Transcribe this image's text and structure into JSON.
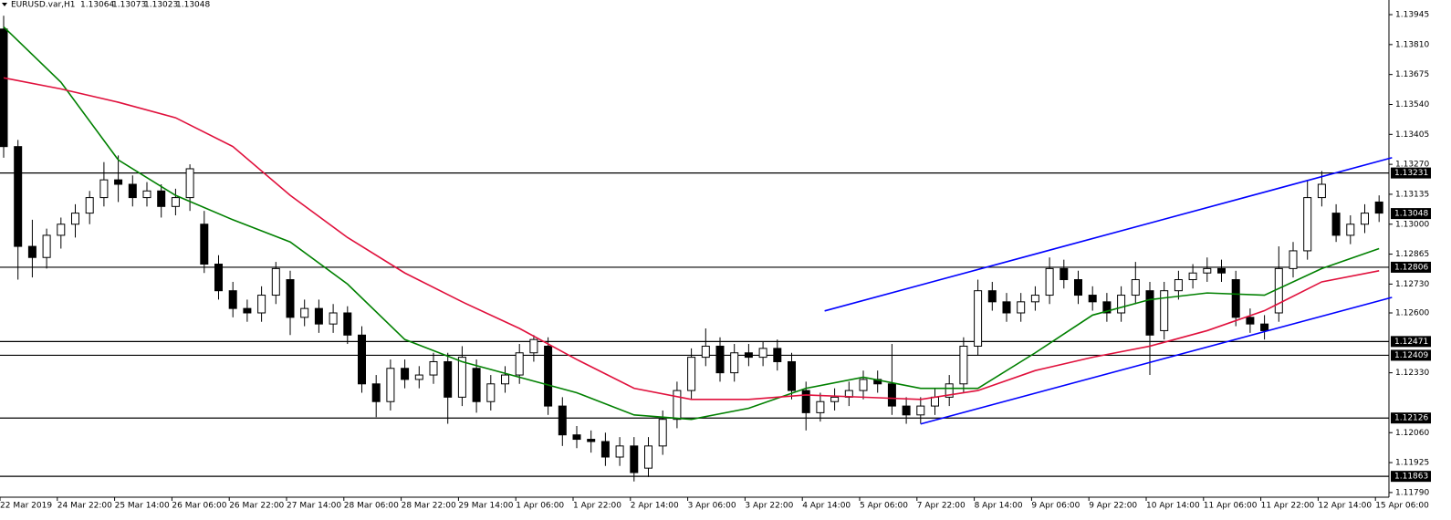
{
  "chart_data": {
    "type": "candlestick",
    "symbol": "EURUSD.var,H1",
    "ohlc": [
      1.13064,
      1.13073,
      1.13023,
      1.13048
    ],
    "last_price": 1.13048,
    "ylim": [
      1.11769,
      1.14011
    ],
    "yticks": [
      1.13945,
      {
        "value": 1.1381,
        "label": "1.13810"
      },
      1.13675,
      {
        "value": 1.1354,
        "label": "1.13540"
      },
      1.13405,
      {
        "value": 1.1327,
        "label": "1.13270"
      },
      1.13135,
      {
        "value": 1.13,
        "label": "1.13000"
      },
      1.12865,
      {
        "value": 1.1273,
        "label": "1.12730"
      },
      {
        "value": 1.126,
        "label": "1.12600"
      },
      {
        "value": 1.1233,
        "label": "1.12330"
      },
      {
        "value": 1.1206,
        "label": "1.12060"
      },
      1.11925,
      {
        "value": 1.1179,
        "label": "1.11790"
      }
    ],
    "levels": [
      1.13231,
      1.12806,
      1.12471,
      1.12409,
      1.12126,
      1.11863
    ],
    "categories": [
      "22 Mar 2019",
      "24 Mar 22:00",
      "25 Mar 14:00",
      "26 Mar 06:00",
      "26 Mar 22:00",
      "27 Mar 14:00",
      "28 Mar 06:00",
      "28 Mar 22:00",
      "29 Mar 14:00",
      "1 Apr 06:00",
      "1 Apr 22:00",
      "2 Apr 14:00",
      "3 Apr 06:00",
      "3 Apr 22:00",
      "4 Apr 14:00",
      "5 Apr 06:00",
      "7 Apr 22:00",
      "8 Apr 14:00",
      "9 Apr 06:00",
      "9 Apr 22:00",
      "10 Apr 14:00",
      "11 Apr 06:00",
      "11 Apr 22:00",
      "12 Apr 14:00",
      "15 Apr 06:00"
    ],
    "candles": [
      [
        1.1388,
        1.1394,
        1.133,
        1.1335
      ],
      [
        1.1335,
        1.1338,
        1.1275,
        1.129
      ],
      [
        1.129,
        1.1302,
        1.1276,
        1.1285
      ],
      [
        1.1285,
        1.1298,
        1.128,
        1.1295
      ],
      [
        1.1295,
        1.1303,
        1.1289,
        1.13
      ],
      [
        1.13,
        1.1309,
        1.1294,
        1.1305
      ],
      [
        1.1305,
        1.1315,
        1.13,
        1.1312
      ],
      [
        1.1312,
        1.1328,
        1.1308,
        1.132
      ],
      [
        1.132,
        1.1331,
        1.131,
        1.1318
      ],
      [
        1.1318,
        1.1322,
        1.1308,
        1.1312
      ],
      [
        1.1312,
        1.1319,
        1.1308,
        1.1315
      ],
      [
        1.1315,
        1.1318,
        1.1303,
        1.1308
      ],
      [
        1.1308,
        1.1316,
        1.1304,
        1.1312
      ],
      [
        1.1312,
        1.1327,
        1.1306,
        1.1325
      ],
      [
        1.13,
        1.1306,
        1.1278,
        1.1282
      ],
      [
        1.1282,
        1.1286,
        1.1266,
        1.127
      ],
      [
        1.127,
        1.1274,
        1.1258,
        1.1262
      ],
      [
        1.1262,
        1.1266,
        1.1256,
        1.126
      ],
      [
        1.126,
        1.1272,
        1.1256,
        1.1268
      ],
      [
        1.1268,
        1.1283,
        1.1264,
        1.128
      ],
      [
        1.1275,
        1.1279,
        1.125,
        1.1258
      ],
      [
        1.1258,
        1.1266,
        1.1254,
        1.1262
      ],
      [
        1.1262,
        1.1266,
        1.1251,
        1.1255
      ],
      [
        1.1255,
        1.1264,
        1.1251,
        1.126
      ],
      [
        1.126,
        1.1263,
        1.1246,
        1.125
      ],
      [
        1.125,
        1.1254,
        1.1224,
        1.1228
      ],
      [
        1.1228,
        1.1232,
        1.1213,
        1.122
      ],
      [
        1.122,
        1.1239,
        1.1216,
        1.1235
      ],
      [
        1.1235,
        1.1239,
        1.1226,
        1.123
      ],
      [
        1.123,
        1.1236,
        1.1226,
        1.1232
      ],
      [
        1.1232,
        1.1242,
        1.1228,
        1.1238
      ],
      [
        1.1238,
        1.1242,
        1.121,
        1.1222
      ],
      [
        1.1222,
        1.1245,
        1.1218,
        1.124
      ],
      [
        1.1235,
        1.1239,
        1.1215,
        1.122
      ],
      [
        1.122,
        1.1232,
        1.1216,
        1.1228
      ],
      [
        1.1228,
        1.1236,
        1.1224,
        1.1232
      ],
      [
        1.1232,
        1.1246,
        1.1228,
        1.1242
      ],
      [
        1.1242,
        1.125,
        1.1238,
        1.1248
      ],
      [
        1.1245,
        1.1249,
        1.1214,
        1.1218
      ],
      [
        1.1218,
        1.1222,
        1.12,
        1.1205
      ],
      [
        1.1205,
        1.1209,
        1.1199,
        1.1203
      ],
      [
        1.1203,
        1.1207,
        1.1197,
        1.1202
      ],
      [
        1.1202,
        1.1206,
        1.1191,
        1.1195
      ],
      [
        1.1195,
        1.1204,
        1.1191,
        1.12
      ],
      [
        1.12,
        1.1204,
        1.1184,
        1.1188
      ],
      [
        1.119,
        1.1204,
        1.1186,
        1.12
      ],
      [
        1.12,
        1.1216,
        1.1196,
        1.1212
      ],
      [
        1.1212,
        1.1229,
        1.1208,
        1.1225
      ],
      [
        1.1225,
        1.1244,
        1.1221,
        1.124
      ],
      [
        1.124,
        1.1253,
        1.1236,
        1.1245
      ],
      [
        1.1245,
        1.1249,
        1.1229,
        1.1233
      ],
      [
        1.1233,
        1.1246,
        1.1229,
        1.1242
      ],
      [
        1.1242,
        1.1246,
        1.1236,
        1.124
      ],
      [
        1.124,
        1.1247,
        1.1236,
        1.1244
      ],
      [
        1.1244,
        1.1248,
        1.1234,
        1.1238
      ],
      [
        1.1238,
        1.1242,
        1.1221,
        1.1225
      ],
      [
        1.1225,
        1.1229,
        1.1207,
        1.1215
      ],
      [
        1.1215,
        1.1224,
        1.1211,
        1.122
      ],
      [
        1.122,
        1.1226,
        1.1216,
        1.1222
      ],
      [
        1.1222,
        1.1229,
        1.1218,
        1.1225
      ],
      [
        1.1225,
        1.1234,
        1.1221,
        1.123
      ],
      [
        1.123,
        1.1234,
        1.1224,
        1.1228
      ],
      [
        1.1228,
        1.1246,
        1.1214,
        1.1218
      ],
      [
        1.1218,
        1.1222,
        1.121,
        1.1214
      ],
      [
        1.1214,
        1.1222,
        1.121,
        1.1218
      ],
      [
        1.1218,
        1.1226,
        1.1214,
        1.1222
      ],
      [
        1.1222,
        1.1232,
        1.1218,
        1.1228
      ],
      [
        1.1228,
        1.1249,
        1.1224,
        1.1245
      ],
      [
        1.1245,
        1.1275,
        1.1241,
        1.127
      ],
      [
        1.127,
        1.1274,
        1.1261,
        1.1265
      ],
      [
        1.1265,
        1.1269,
        1.1256,
        1.126
      ],
      [
        1.126,
        1.1269,
        1.1256,
        1.1265
      ],
      [
        1.1265,
        1.1272,
        1.1261,
        1.1268
      ],
      [
        1.1268,
        1.1285,
        1.1264,
        1.128
      ],
      [
        1.128,
        1.1284,
        1.1271,
        1.1275
      ],
      [
        1.1275,
        1.1279,
        1.1264,
        1.1268
      ],
      [
        1.1268,
        1.1272,
        1.1261,
        1.1265
      ],
      [
        1.1265,
        1.1269,
        1.1256,
        1.126
      ],
      [
        1.126,
        1.1272,
        1.1256,
        1.1268
      ],
      [
        1.1268,
        1.1283,
        1.1264,
        1.1275
      ],
      [
        1.127,
        1.1274,
        1.1232,
        1.125
      ],
      [
        1.1252,
        1.1274,
        1.1248,
        1.127
      ],
      [
        1.127,
        1.1279,
        1.1266,
        1.1275
      ],
      [
        1.1275,
        1.1282,
        1.1271,
        1.1278
      ],
      [
        1.1278,
        1.1285,
        1.1274,
        1.128
      ],
      [
        1.128,
        1.1284,
        1.1274,
        1.1278
      ],
      [
        1.1275,
        1.1279,
        1.1254,
        1.1258
      ],
      [
        1.1258,
        1.1262,
        1.1251,
        1.1255
      ],
      [
        1.1255,
        1.1259,
        1.1248,
        1.1252
      ],
      [
        1.126,
        1.129,
        1.1256,
        1.128
      ],
      [
        1.128,
        1.1292,
        1.1276,
        1.1288
      ],
      [
        1.1288,
        1.132,
        1.1284,
        1.1312
      ],
      [
        1.1312,
        1.1324,
        1.1308,
        1.1318
      ],
      [
        1.1305,
        1.1309,
        1.1292,
        1.1295
      ],
      [
        1.1295,
        1.1304,
        1.1291,
        1.13
      ],
      [
        1.13,
        1.1309,
        1.1296,
        1.1305
      ],
      [
        1.131,
        1.1313,
        1.1301,
        1.1305
      ]
    ],
    "ma_x": [
      0,
      4,
      8,
      12,
      16,
      20,
      24,
      28,
      32,
      36,
      40,
      44,
      48,
      52,
      56,
      60,
      64,
      68,
      72,
      76,
      80,
      84,
      88,
      92,
      96
    ],
    "series": [
      {
        "color": "#008000",
        "values": [
          1.1389,
          1.1364,
          1.1329,
          1.1313,
          1.1302,
          1.1292,
          1.1273,
          1.1248,
          1.1238,
          1.1231,
          1.1224,
          1.1214,
          1.1212,
          1.1217,
          1.1226,
          1.1231,
          1.1226,
          1.1226,
          1.1242,
          1.1259,
          1.1266,
          1.1269,
          1.1268,
          1.128,
          1.1289
        ]
      },
      {
        "color": "#e0103c",
        "values": [
          1.1366,
          1.1361,
          1.1355,
          1.1348,
          1.1335,
          1.1313,
          1.1294,
          1.1278,
          1.1265,
          1.1253,
          1.1239,
          1.1226,
          1.1221,
          1.1221,
          1.1223,
          1.1222,
          1.1221,
          1.1225,
          1.1234,
          1.124,
          1.1245,
          1.1252,
          1.1261,
          1.1274,
          1.1279
        ]
      }
    ],
    "trendlines": [
      {
        "color": "#0000ff",
        "x": [
          57.3,
          96.9
        ],
        "values": [
          1.12609,
          1.133
        ]
      },
      {
        "color": "#0000ff",
        "x": [
          64,
          96.9
        ],
        "values": [
          1.12099,
          1.1267
        ]
      }
    ]
  }
}
